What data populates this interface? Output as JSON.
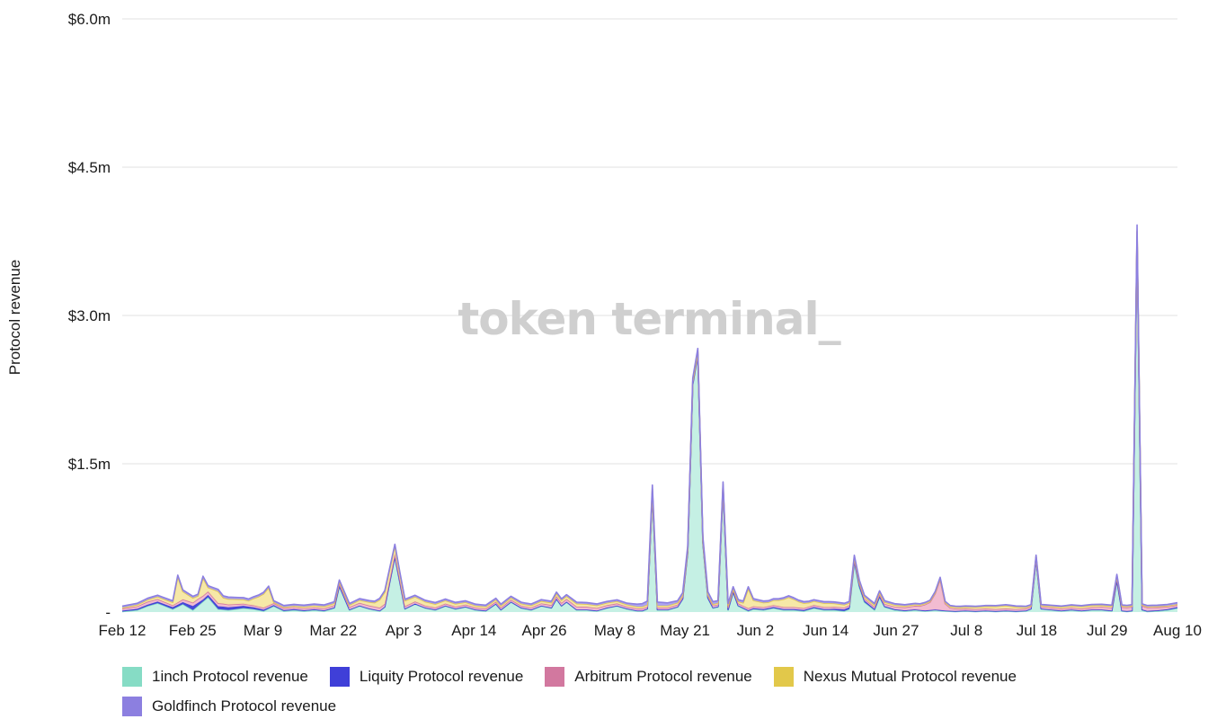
{
  "watermark": "token terminal_",
  "chart_data": {
    "type": "area",
    "stacked": true,
    "ylabel": "Protocol revenue",
    "xlabel": "",
    "ylim": [
      0,
      6000000
    ],
    "y_ticks": [
      {
        "value": 0,
        "label": "-"
      },
      {
        "value": 1500000,
        "label": "$1.5m"
      },
      {
        "value": 3000000,
        "label": "$3.0m"
      },
      {
        "value": 4500000,
        "label": "$4.5m"
      },
      {
        "value": 6000000,
        "label": "$6.0m"
      }
    ],
    "x_ticks": [
      "Feb 12",
      "Feb 25",
      "Mar 9",
      "Mar 22",
      "Apr 3",
      "Apr 14",
      "Apr 26",
      "May 8",
      "May 21",
      "Jun 2",
      "Jun 14",
      "Jun 27",
      "Jul 8",
      "Jul 18",
      "Jul 29",
      "Aug 10"
    ],
    "grid": true,
    "legend_position": "bottom",
    "series": [
      {
        "name": "1inch Protocol revenue",
        "color": "#86dcc5",
        "fill": "#c2efe3",
        "points": [
          [
            0,
            5000
          ],
          [
            3,
            20000
          ],
          [
            5,
            60000
          ],
          [
            7,
            90000
          ],
          [
            10,
            30000
          ],
          [
            12,
            80000
          ],
          [
            14,
            20000
          ],
          [
            17,
            150000
          ],
          [
            19,
            30000
          ],
          [
            21,
            20000
          ],
          [
            24,
            40000
          ],
          [
            26,
            30000
          ],
          [
            28,
            10000
          ],
          [
            30,
            60000
          ],
          [
            32,
            10000
          ],
          [
            34,
            20000
          ],
          [
            36,
            10000
          ],
          [
            38,
            20000
          ],
          [
            40,
            10000
          ],
          [
            42,
            40000
          ],
          [
            43,
            260000
          ],
          [
            45,
            20000
          ],
          [
            47,
            60000
          ],
          [
            49,
            30000
          ],
          [
            51,
            10000
          ],
          [
            52,
            50000
          ],
          [
            54,
            560000
          ],
          [
            56,
            30000
          ],
          [
            58,
            80000
          ],
          [
            60,
            40000
          ],
          [
            62,
            20000
          ],
          [
            64,
            60000
          ],
          [
            66,
            30000
          ],
          [
            68,
            50000
          ],
          [
            70,
            20000
          ],
          [
            72,
            10000
          ],
          [
            74,
            80000
          ],
          [
            75,
            20000
          ],
          [
            77,
            100000
          ],
          [
            79,
            40000
          ],
          [
            81,
            20000
          ],
          [
            83,
            60000
          ],
          [
            85,
            40000
          ],
          [
            86,
            130000
          ],
          [
            87,
            60000
          ],
          [
            88,
            100000
          ],
          [
            90,
            20000
          ],
          [
            92,
            20000
          ],
          [
            94,
            10000
          ],
          [
            96,
            40000
          ],
          [
            98,
            60000
          ],
          [
            100,
            30000
          ],
          [
            102,
            10000
          ],
          [
            103,
            10000
          ],
          [
            104,
            30000
          ],
          [
            105,
            1200000
          ],
          [
            106,
            20000
          ],
          [
            108,
            20000
          ],
          [
            110,
            50000
          ],
          [
            111,
            130000
          ],
          [
            112,
            600000
          ],
          [
            113,
            2300000
          ],
          [
            114,
            2600000
          ],
          [
            115,
            700000
          ],
          [
            116,
            140000
          ],
          [
            117,
            40000
          ],
          [
            118,
            50000
          ],
          [
            119,
            1250000
          ],
          [
            120,
            20000
          ],
          [
            121,
            200000
          ],
          [
            122,
            60000
          ],
          [
            124,
            10000
          ],
          [
            125,
            30000
          ],
          [
            127,
            20000
          ],
          [
            129,
            40000
          ],
          [
            131,
            20000
          ],
          [
            133,
            20000
          ],
          [
            135,
            10000
          ],
          [
            137,
            40000
          ],
          [
            139,
            20000
          ],
          [
            141,
            20000
          ],
          [
            143,
            10000
          ],
          [
            144,
            30000
          ],
          [
            145,
            500000
          ],
          [
            146,
            250000
          ],
          [
            147,
            100000
          ],
          [
            149,
            20000
          ],
          [
            150,
            150000
          ],
          [
            151,
            50000
          ],
          [
            153,
            20000
          ],
          [
            155,
            10000
          ],
          [
            157,
            20000
          ],
          [
            159,
            10000
          ],
          [
            161,
            20000
          ],
          [
            163,
            10000
          ],
          [
            165,
            5000
          ],
          [
            167,
            10000
          ],
          [
            169,
            5000
          ],
          [
            171,
            10000
          ],
          [
            173,
            5000
          ],
          [
            175,
            10000
          ],
          [
            177,
            5000
          ],
          [
            179,
            10000
          ],
          [
            180,
            30000
          ],
          [
            181,
            530000
          ],
          [
            182,
            30000
          ],
          [
            184,
            20000
          ],
          [
            186,
            10000
          ],
          [
            188,
            20000
          ],
          [
            190,
            10000
          ],
          [
            192,
            20000
          ],
          [
            194,
            20000
          ],
          [
            196,
            10000
          ],
          [
            197,
            320000
          ],
          [
            198,
            10000
          ],
          [
            199,
            5000
          ],
          [
            200,
            10000
          ],
          [
            201,
            3800000
          ],
          [
            202,
            20000
          ],
          [
            203,
            5000
          ],
          [
            205,
            10000
          ],
          [
            207,
            20000
          ],
          [
            209,
            40000
          ]
        ]
      },
      {
        "name": "Liquity Protocol revenue",
        "color": "#3f3fd8",
        "fill": "#3f3fd8",
        "points": [
          [
            0,
            10000
          ],
          [
            12,
            20000
          ],
          [
            14,
            40000
          ],
          [
            16,
            20000
          ],
          [
            20,
            30000
          ],
          [
            30,
            10000
          ],
          [
            50,
            5000
          ],
          [
            70,
            5000
          ],
          [
            90,
            5000
          ],
          [
            105,
            5000
          ],
          [
            114,
            5000
          ],
          [
            130,
            10000
          ],
          [
            140,
            10000
          ],
          [
            145,
            20000
          ],
          [
            150,
            10000
          ],
          [
            160,
            5000
          ],
          [
            180,
            5000
          ],
          [
            190,
            5000
          ],
          [
            201,
            5000
          ],
          [
            209,
            10000
          ]
        ]
      },
      {
        "name": "Arbitrum Protocol revenue",
        "color": "#d2789f",
        "fill": "#f1b8cf",
        "points": [
          [
            0,
            20000
          ],
          [
            5,
            30000
          ],
          [
            10,
            20000
          ],
          [
            15,
            40000
          ],
          [
            20,
            30000
          ],
          [
            25,
            20000
          ],
          [
            30,
            20000
          ],
          [
            40,
            20000
          ],
          [
            50,
            30000
          ],
          [
            60,
            20000
          ],
          [
            70,
            20000
          ],
          [
            80,
            20000
          ],
          [
            90,
            30000
          ],
          [
            100,
            20000
          ],
          [
            110,
            20000
          ],
          [
            120,
            20000
          ],
          [
            130,
            20000
          ],
          [
            140,
            20000
          ],
          [
            150,
            20000
          ],
          [
            155,
            30000
          ],
          [
            158,
            40000
          ],
          [
            160,
            80000
          ],
          [
            161,
            160000
          ],
          [
            162,
            310000
          ],
          [
            163,
            70000
          ],
          [
            164,
            30000
          ],
          [
            166,
            20000
          ],
          [
            170,
            20000
          ],
          [
            180,
            20000
          ],
          [
            190,
            20000
          ],
          [
            201,
            40000
          ],
          [
            209,
            20000
          ]
        ]
      },
      {
        "name": "Nexus Mutual Protocol revenue",
        "color": "#e2c84a",
        "fill": "#f6e7a2",
        "points": [
          [
            0,
            10000
          ],
          [
            5,
            20000
          ],
          [
            10,
            30000
          ],
          [
            11,
            260000
          ],
          [
            12,
            80000
          ],
          [
            15,
            30000
          ],
          [
            16,
            180000
          ],
          [
            17,
            40000
          ],
          [
            19,
            120000
          ],
          [
            20,
            60000
          ],
          [
            25,
            40000
          ],
          [
            27,
            100000
          ],
          [
            29,
            180000
          ],
          [
            30,
            10000
          ],
          [
            40,
            20000
          ],
          [
            45,
            20000
          ],
          [
            50,
            40000
          ],
          [
            52,
            120000
          ],
          [
            55,
            60000
          ],
          [
            60,
            40000
          ],
          [
            65,
            30000
          ],
          [
            70,
            20000
          ],
          [
            80,
            20000
          ],
          [
            90,
            30000
          ],
          [
            100,
            20000
          ],
          [
            110,
            20000
          ],
          [
            115,
            10000
          ],
          [
            120,
            20000
          ],
          [
            121,
            10000
          ],
          [
            123,
            30000
          ],
          [
            124,
            200000
          ],
          [
            125,
            60000
          ],
          [
            128,
            40000
          ],
          [
            130,
            60000
          ],
          [
            132,
            100000
          ],
          [
            134,
            60000
          ],
          [
            136,
            40000
          ],
          [
            140,
            40000
          ],
          [
            145,
            20000
          ],
          [
            150,
            20000
          ],
          [
            160,
            10000
          ],
          [
            170,
            20000
          ],
          [
            175,
            30000
          ],
          [
            180,
            10000
          ],
          [
            190,
            20000
          ],
          [
            201,
            10000
          ],
          [
            209,
            10000
          ]
        ]
      },
      {
        "name": "Goldfinch Protocol revenue",
        "color": "#8c7fe0",
        "fill": "#a99ff0",
        "points": [
          [
            0,
            15000
          ],
          [
            10,
            15000
          ],
          [
            20,
            20000
          ],
          [
            30,
            15000
          ],
          [
            40,
            15000
          ],
          [
            50,
            15000
          ],
          [
            60,
            15000
          ],
          [
            70,
            15000
          ],
          [
            80,
            15000
          ],
          [
            90,
            15000
          ],
          [
            100,
            15000
          ],
          [
            105,
            40000
          ],
          [
            110,
            20000
          ],
          [
            114,
            30000
          ],
          [
            120,
            20000
          ],
          [
            130,
            15000
          ],
          [
            140,
            15000
          ],
          [
            150,
            15000
          ],
          [
            160,
            10000
          ],
          [
            170,
            10000
          ],
          [
            180,
            10000
          ],
          [
            190,
            10000
          ],
          [
            200,
            10000
          ],
          [
            201,
            60000
          ],
          [
            202,
            10000
          ],
          [
            209,
            15000
          ]
        ]
      }
    ]
  }
}
